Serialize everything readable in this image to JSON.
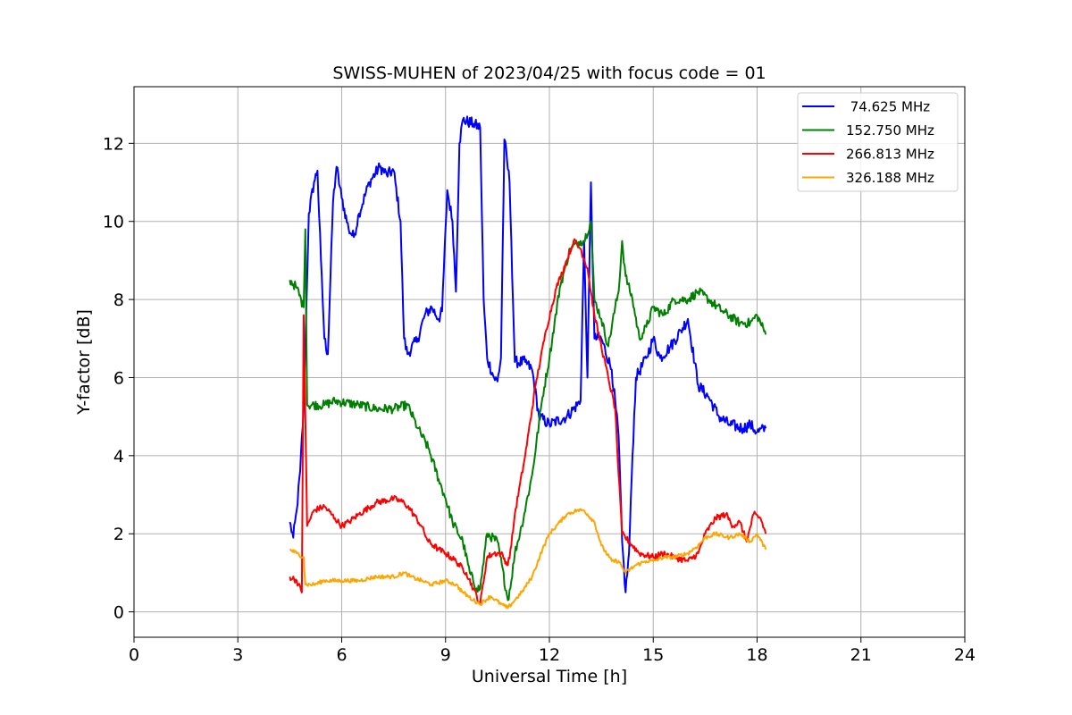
{
  "chart_data": {
    "type": "line",
    "title": "SWISS-MUHEN of 2023/04/25 with focus code = 01",
    "xlabel": "Universal Time [h]",
    "ylabel": "Y-factor [dB]",
    "xlim": [
      0,
      24
    ],
    "ylim": [
      -0.65,
      13.45
    ],
    "xticks": [
      0,
      3,
      6,
      9,
      12,
      15,
      18,
      21,
      24
    ],
    "yticks": [
      0,
      2,
      4,
      6,
      8,
      10,
      12
    ],
    "grid": true,
    "legend_position": "top-right",
    "series": [
      {
        "name": " 74.625 MHz",
        "color": "#0000ff",
        "noise": 0.15,
        "points": [
          [
            4.5,
            2.3
          ],
          [
            4.6,
            1.9
          ],
          [
            4.7,
            2.6
          ],
          [
            4.8,
            3.6
          ],
          [
            4.9,
            5.2
          ],
          [
            5.0,
            8.5
          ],
          [
            5.05,
            10.2
          ],
          [
            5.2,
            11.0
          ],
          [
            5.3,
            11.3
          ],
          [
            5.4,
            9.0
          ],
          [
            5.5,
            7.0
          ],
          [
            5.6,
            6.6
          ],
          [
            5.75,
            10.5
          ],
          [
            5.85,
            11.4
          ],
          [
            6.0,
            10.6
          ],
          [
            6.2,
            9.8
          ],
          [
            6.35,
            9.6
          ],
          [
            6.5,
            10.2
          ],
          [
            6.8,
            11.0
          ],
          [
            7.1,
            11.4
          ],
          [
            7.3,
            11.2
          ],
          [
            7.5,
            11.3
          ],
          [
            7.7,
            10.0
          ],
          [
            7.8,
            7.0
          ],
          [
            7.9,
            6.6
          ],
          [
            8.2,
            7.0
          ],
          [
            8.4,
            7.6
          ],
          [
            8.6,
            7.8
          ],
          [
            8.8,
            7.5
          ],
          [
            8.9,
            7.7
          ],
          [
            9.05,
            10.8
          ],
          [
            9.2,
            10.0
          ],
          [
            9.3,
            8.2
          ],
          [
            9.4,
            12.0
          ],
          [
            9.5,
            12.6
          ],
          [
            9.8,
            12.5
          ],
          [
            10.0,
            12.4
          ],
          [
            10.1,
            8.0
          ],
          [
            10.2,
            6.5
          ],
          [
            10.4,
            6.0
          ],
          [
            10.5,
            5.9
          ],
          [
            10.6,
            6.5
          ],
          [
            10.7,
            12.1
          ],
          [
            10.85,
            11.0
          ],
          [
            10.9,
            9.5
          ],
          [
            11.0,
            6.4
          ],
          [
            11.3,
            6.4
          ],
          [
            11.5,
            6.2
          ],
          [
            11.7,
            5.0
          ],
          [
            12.0,
            4.8
          ],
          [
            12.5,
            5.0
          ],
          [
            12.9,
            5.4
          ],
          [
            13.0,
            9.5
          ],
          [
            13.1,
            6.0
          ],
          [
            13.2,
            11.0
          ],
          [
            13.3,
            7.0
          ],
          [
            13.5,
            7.0
          ],
          [
            13.8,
            6.2
          ],
          [
            14.0,
            4.5
          ],
          [
            14.1,
            1.8
          ],
          [
            14.2,
            0.5
          ],
          [
            14.3,
            1.5
          ],
          [
            14.4,
            4.0
          ],
          [
            14.5,
            6.0
          ],
          [
            14.8,
            6.5
          ],
          [
            15.0,
            7.0
          ],
          [
            15.2,
            6.5
          ],
          [
            15.5,
            6.8
          ],
          [
            15.8,
            7.2
          ],
          [
            16.0,
            7.5
          ],
          [
            16.3,
            5.8
          ],
          [
            16.6,
            5.5
          ],
          [
            16.9,
            5.0
          ],
          [
            17.2,
            4.8
          ],
          [
            17.6,
            4.7
          ],
          [
            17.8,
            4.8
          ],
          [
            18.0,
            4.6
          ],
          [
            18.25,
            4.7
          ]
        ]
      },
      {
        "name": "152.750 MHz",
        "color": "#008000",
        "noise": 0.12,
        "points": [
          [
            4.5,
            8.5
          ],
          [
            4.7,
            8.3
          ],
          [
            4.9,
            7.8
          ],
          [
            4.95,
            9.8
          ],
          [
            5.0,
            5.3
          ],
          [
            5.5,
            5.3
          ],
          [
            5.8,
            5.4
          ],
          [
            6.5,
            5.3
          ],
          [
            7.0,
            5.2
          ],
          [
            7.5,
            5.2
          ],
          [
            7.9,
            5.3
          ],
          [
            8.2,
            4.7
          ],
          [
            8.5,
            4.2
          ],
          [
            8.8,
            3.4
          ],
          [
            9.0,
            2.9
          ],
          [
            9.2,
            2.3
          ],
          [
            9.5,
            1.8
          ],
          [
            9.7,
            1.0
          ],
          [
            9.9,
            0.6
          ],
          [
            10.0,
            0.6
          ],
          [
            10.2,
            2.0
          ],
          [
            10.5,
            1.8
          ],
          [
            10.8,
            0.3
          ],
          [
            10.9,
            0.8
          ],
          [
            11.0,
            1.5
          ],
          [
            11.2,
            2.2
          ],
          [
            11.5,
            3.5
          ],
          [
            11.8,
            5.5
          ],
          [
            12.0,
            6.5
          ],
          [
            12.3,
            8.3
          ],
          [
            12.6,
            9.3
          ],
          [
            12.9,
            9.5
          ],
          [
            13.0,
            9.5
          ],
          [
            13.2,
            10.0
          ],
          [
            13.3,
            8.0
          ],
          [
            13.5,
            7.5
          ],
          [
            13.7,
            6.8
          ],
          [
            13.9,
            7.8
          ],
          [
            14.0,
            8.2
          ],
          [
            14.1,
            9.5
          ],
          [
            14.2,
            8.6
          ],
          [
            14.4,
            8.0
          ],
          [
            14.6,
            7.0
          ],
          [
            14.8,
            7.3
          ],
          [
            15.0,
            7.8
          ],
          [
            15.3,
            7.6
          ],
          [
            15.6,
            8.0
          ],
          [
            16.0,
            8.0
          ],
          [
            16.3,
            8.2
          ],
          [
            16.6,
            8.0
          ],
          [
            17.0,
            7.7
          ],
          [
            17.5,
            7.4
          ],
          [
            17.8,
            7.4
          ],
          [
            18.0,
            7.6
          ],
          [
            18.25,
            7.1
          ]
        ]
      },
      {
        "name": "266.813 MHz",
        "color": "#ff0000",
        "noise": 0.08,
        "points": [
          [
            4.5,
            0.9
          ],
          [
            4.7,
            0.8
          ],
          [
            4.85,
            0.5
          ],
          [
            4.9,
            7.6
          ],
          [
            4.95,
            5.0
          ],
          [
            5.0,
            2.2
          ],
          [
            5.2,
            2.6
          ],
          [
            5.5,
            2.7
          ],
          [
            5.8,
            2.4
          ],
          [
            6.0,
            2.2
          ],
          [
            6.2,
            2.3
          ],
          [
            6.5,
            2.5
          ],
          [
            7.0,
            2.8
          ],
          [
            7.5,
            2.9
          ],
          [
            7.8,
            2.8
          ],
          [
            8.0,
            2.6
          ],
          [
            8.3,
            2.2
          ],
          [
            8.5,
            1.8
          ],
          [
            8.8,
            1.6
          ],
          [
            9.0,
            1.5
          ],
          [
            9.3,
            1.3
          ],
          [
            9.6,
            1.0
          ],
          [
            9.8,
            0.6
          ],
          [
            10.0,
            0.2
          ],
          [
            10.2,
            1.4
          ],
          [
            10.4,
            1.5
          ],
          [
            10.6,
            1.5
          ],
          [
            10.8,
            1.2
          ],
          [
            10.9,
            1.7
          ],
          [
            11.0,
            2.5
          ],
          [
            11.3,
            4.0
          ],
          [
            11.6,
            5.8
          ],
          [
            11.9,
            7.2
          ],
          [
            12.2,
            8.3
          ],
          [
            12.5,
            9.0
          ],
          [
            12.7,
            9.5
          ],
          [
            12.9,
            9.3
          ],
          [
            13.1,
            8.8
          ],
          [
            13.3,
            7.6
          ],
          [
            13.5,
            6.8
          ],
          [
            13.7,
            6.0
          ],
          [
            13.9,
            5.2
          ],
          [
            14.0,
            3.5
          ],
          [
            14.1,
            2.0
          ],
          [
            14.3,
            1.8
          ],
          [
            14.6,
            1.5
          ],
          [
            15.0,
            1.4
          ],
          [
            15.3,
            1.5
          ],
          [
            15.6,
            1.4
          ],
          [
            16.0,
            1.3
          ],
          [
            16.3,
            1.5
          ],
          [
            16.5,
            2.0
          ],
          [
            16.8,
            2.4
          ],
          [
            17.1,
            2.5
          ],
          [
            17.3,
            2.2
          ],
          [
            17.5,
            2.3
          ],
          [
            17.7,
            1.8
          ],
          [
            17.9,
            2.5
          ],
          [
            18.1,
            2.4
          ],
          [
            18.25,
            2.0
          ]
        ]
      },
      {
        "name": "326.188 MHz",
        "color": "#ffa500",
        "noise": 0.05,
        "points": [
          [
            4.5,
            1.6
          ],
          [
            4.7,
            1.5
          ],
          [
            4.9,
            1.4
          ],
          [
            4.95,
            0.7
          ],
          [
            5.2,
            0.7
          ],
          [
            5.5,
            0.8
          ],
          [
            6.0,
            0.8
          ],
          [
            6.5,
            0.8
          ],
          [
            7.0,
            0.9
          ],
          [
            7.5,
            0.9
          ],
          [
            7.8,
            1.0
          ],
          [
            8.0,
            0.9
          ],
          [
            8.3,
            0.8
          ],
          [
            8.6,
            0.7
          ],
          [
            9.0,
            0.8
          ],
          [
            9.3,
            0.7
          ],
          [
            9.5,
            0.5
          ],
          [
            9.8,
            0.3
          ],
          [
            10.0,
            0.2
          ],
          [
            10.3,
            0.4
          ],
          [
            10.6,
            0.2
          ],
          [
            10.8,
            0.1
          ],
          [
            11.0,
            0.3
          ],
          [
            11.2,
            0.5
          ],
          [
            11.5,
            0.9
          ],
          [
            11.8,
            1.6
          ],
          [
            12.0,
            2.0
          ],
          [
            12.3,
            2.3
          ],
          [
            12.5,
            2.5
          ],
          [
            12.8,
            2.6
          ],
          [
            13.0,
            2.6
          ],
          [
            13.3,
            2.3
          ],
          [
            13.5,
            1.7
          ],
          [
            13.8,
            1.3
          ],
          [
            14.0,
            1.3
          ],
          [
            14.2,
            1.0
          ],
          [
            14.5,
            1.2
          ],
          [
            14.8,
            1.3
          ],
          [
            15.0,
            1.3
          ],
          [
            15.3,
            1.4
          ],
          [
            15.6,
            1.4
          ],
          [
            16.0,
            1.5
          ],
          [
            16.3,
            1.7
          ],
          [
            16.5,
            1.9
          ],
          [
            16.8,
            2.0
          ],
          [
            17.2,
            1.9
          ],
          [
            17.5,
            2.0
          ],
          [
            17.8,
            1.8
          ],
          [
            18.0,
            2.0
          ],
          [
            18.25,
            1.6
          ]
        ]
      }
    ]
  }
}
